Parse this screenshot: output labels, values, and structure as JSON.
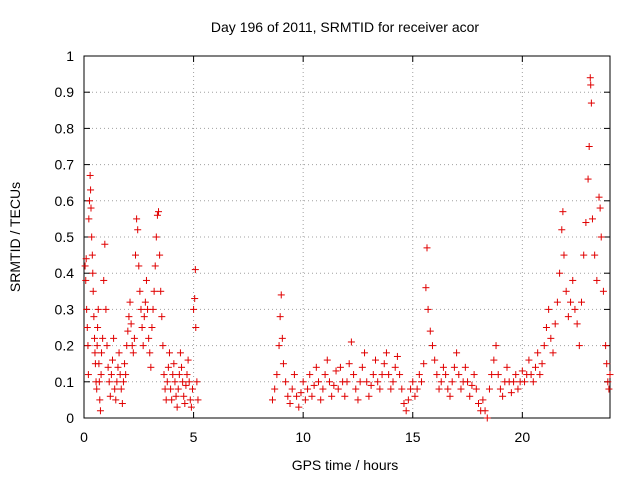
{
  "chart_data": {
    "type": "scatter",
    "title": "Day 196 of 2011, SRMTID for receiver acor",
    "xlabel": "GPS time / hours",
    "ylabel": "SRMTID / TECUs",
    "xlim": [
      0,
      24
    ],
    "ylim": [
      0,
      1
    ],
    "x_ticks": [
      0,
      5,
      10,
      15,
      20
    ],
    "x_tick_labels": [
      "0",
      "5",
      "10",
      "15",
      "20"
    ],
    "y_ticks": [
      0,
      0.1,
      0.2,
      0.3,
      0.4,
      0.5,
      0.6,
      0.7,
      0.8,
      0.9,
      1
    ],
    "y_tick_labels": [
      "0",
      "0.1",
      "0.2",
      "0.3",
      "0.4",
      "0.5",
      "0.6",
      "0.7",
      "0.8",
      "0.9",
      "1"
    ],
    "grid": true,
    "legend": "none",
    "marker": "+",
    "marker_color": "#e00000",
    "data_segments": [
      {
        "x_range": [
          0.0,
          5.2
        ],
        "note_values": "dense, 0.02-0.67, peak ~0.67 near x=0.3, ~0.57 near x=3.4"
      },
      {
        "x_range": [
          8.6,
          24.0
        ],
        "note_values": "dense, 0.0-0.94, peak ~0.94 near x=23.1"
      }
    ],
    "points": [
      [
        0.05,
        0.42
      ],
      [
        0.08,
        0.38
      ],
      [
        0.1,
        0.44
      ],
      [
        0.12,
        0.3
      ],
      [
        0.15,
        0.25
      ],
      [
        0.18,
        0.2
      ],
      [
        0.2,
        0.12
      ],
      [
        0.22,
        0.55
      ],
      [
        0.25,
        0.6
      ],
      [
        0.28,
        0.67
      ],
      [
        0.3,
        0.63
      ],
      [
        0.32,
        0.58
      ],
      [
        0.35,
        0.5
      ],
      [
        0.38,
        0.45
      ],
      [
        0.4,
        0.4
      ],
      [
        0.42,
        0.35
      ],
      [
        0.45,
        0.28
      ],
      [
        0.48,
        0.22
      ],
      [
        0.5,
        0.18
      ],
      [
        0.52,
        0.15
      ],
      [
        0.55,
        0.1
      ],
      [
        0.58,
        0.08
      ],
      [
        0.6,
        0.2
      ],
      [
        0.62,
        0.25
      ],
      [
        0.65,
        0.3
      ],
      [
        0.68,
        0.15
      ],
      [
        0.7,
        0.1
      ],
      [
        0.72,
        0.05
      ],
      [
        0.75,
        0.02
      ],
      [
        0.78,
        0.12
      ],
      [
        0.8,
        0.18
      ],
      [
        0.85,
        0.22
      ],
      [
        0.9,
        0.38
      ],
      [
        0.95,
        0.48
      ],
      [
        1.0,
        0.3
      ],
      [
        1.05,
        0.2
      ],
      [
        1.1,
        0.14
      ],
      [
        1.15,
        0.1
      ],
      [
        1.2,
        0.06
      ],
      [
        1.25,
        0.12
      ],
      [
        1.3,
        0.16
      ],
      [
        1.35,
        0.22
      ],
      [
        1.4,
        0.08
      ],
      [
        1.45,
        0.05
      ],
      [
        1.5,
        0.1
      ],
      [
        1.55,
        0.14
      ],
      [
        1.6,
        0.18
      ],
      [
        1.65,
        0.12
      ],
      [
        1.7,
        0.08
      ],
      [
        1.75,
        0.04
      ],
      [
        1.8,
        0.1
      ],
      [
        1.85,
        0.15
      ],
      [
        1.9,
        0.12
      ],
      [
        1.95,
        0.2
      ],
      [
        2.0,
        0.24
      ],
      [
        2.05,
        0.28
      ],
      [
        2.1,
        0.32
      ],
      [
        2.15,
        0.26
      ],
      [
        2.2,
        0.2
      ],
      [
        2.25,
        0.18
      ],
      [
        2.3,
        0.22
      ],
      [
        2.35,
        0.45
      ],
      [
        2.4,
        0.55
      ],
      [
        2.45,
        0.52
      ],
      [
        2.5,
        0.42
      ],
      [
        2.55,
        0.35
      ],
      [
        2.6,
        0.3
      ],
      [
        2.65,
        0.25
      ],
      [
        2.7,
        0.2
      ],
      [
        2.75,
        0.28
      ],
      [
        2.8,
        0.32
      ],
      [
        2.85,
        0.38
      ],
      [
        2.9,
        0.3
      ],
      [
        2.95,
        0.22
      ],
      [
        3.0,
        0.18
      ],
      [
        3.05,
        0.14
      ],
      [
        3.1,
        0.25
      ],
      [
        3.15,
        0.3
      ],
      [
        3.2,
        0.35
      ],
      [
        3.25,
        0.42
      ],
      [
        3.3,
        0.5
      ],
      [
        3.35,
        0.56
      ],
      [
        3.4,
        0.57
      ],
      [
        3.45,
        0.45
      ],
      [
        3.5,
        0.35
      ],
      [
        3.55,
        0.28
      ],
      [
        3.6,
        0.2
      ],
      [
        3.65,
        0.12
      ],
      [
        3.7,
        0.08
      ],
      [
        3.75,
        0.05
      ],
      [
        3.8,
        0.1
      ],
      [
        3.85,
        0.14
      ],
      [
        3.9,
        0.18
      ],
      [
        3.95,
        0.08
      ],
      [
        4.0,
        0.05
      ],
      [
        4.05,
        0.12
      ],
      [
        4.1,
        0.15
      ],
      [
        4.15,
        0.1
      ],
      [
        4.2,
        0.06
      ],
      [
        4.25,
        0.03
      ],
      [
        4.3,
        0.08
      ],
      [
        4.35,
        0.12
      ],
      [
        4.4,
        0.18
      ],
      [
        4.45,
        0.14
      ],
      [
        4.5,
        0.1
      ],
      [
        4.55,
        0.06
      ],
      [
        4.6,
        0.04
      ],
      [
        4.65,
        0.09
      ],
      [
        4.7,
        0.12
      ],
      [
        4.75,
        0.16
      ],
      [
        4.8,
        0.1
      ],
      [
        4.85,
        0.05
      ],
      [
        4.9,
        0.03
      ],
      [
        4.95,
        0.08
      ],
      [
        5.0,
        0.3
      ],
      [
        5.05,
        0.33
      ],
      [
        5.08,
        0.41
      ],
      [
        5.1,
        0.25
      ],
      [
        5.15,
        0.1
      ],
      [
        5.2,
        0.05
      ],
      [
        8.6,
        0.05
      ],
      [
        8.7,
        0.08
      ],
      [
        8.8,
        0.12
      ],
      [
        8.9,
        0.2
      ],
      [
        8.95,
        0.28
      ],
      [
        9.0,
        0.34
      ],
      [
        9.05,
        0.22
      ],
      [
        9.1,
        0.15
      ],
      [
        9.2,
        0.1
      ],
      [
        9.3,
        0.06
      ],
      [
        9.4,
        0.04
      ],
      [
        9.5,
        0.08
      ],
      [
        9.6,
        0.12
      ],
      [
        9.7,
        0.06
      ],
      [
        9.8,
        0.03
      ],
      [
        9.9,
        0.07
      ],
      [
        10.0,
        0.1
      ],
      [
        10.1,
        0.05
      ],
      [
        10.2,
        0.08
      ],
      [
        10.3,
        0.12
      ],
      [
        10.4,
        0.06
      ],
      [
        10.5,
        0.09
      ],
      [
        10.6,
        0.14
      ],
      [
        10.7,
        0.1
      ],
      [
        10.8,
        0.05
      ],
      [
        10.9,
        0.08
      ],
      [
        11.0,
        0.12
      ],
      [
        11.1,
        0.16
      ],
      [
        11.2,
        0.1
      ],
      [
        11.3,
        0.06
      ],
      [
        11.4,
        0.09
      ],
      [
        11.5,
        0.13
      ],
      [
        11.6,
        0.08
      ],
      [
        11.7,
        0.14
      ],
      [
        11.8,
        0.1
      ],
      [
        11.9,
        0.06
      ],
      [
        12.0,
        0.1
      ],
      [
        12.1,
        0.15
      ],
      [
        12.2,
        0.21
      ],
      [
        12.3,
        0.12
      ],
      [
        12.4,
        0.08
      ],
      [
        12.5,
        0.05
      ],
      [
        12.6,
        0.1
      ],
      [
        12.7,
        0.14
      ],
      [
        12.8,
        0.18
      ],
      [
        12.9,
        0.1
      ],
      [
        13.0,
        0.06
      ],
      [
        13.1,
        0.09
      ],
      [
        13.2,
        0.12
      ],
      [
        13.3,
        0.16
      ],
      [
        13.4,
        0.1
      ],
      [
        13.5,
        0.08
      ],
      [
        13.6,
        0.12
      ],
      [
        13.7,
        0.15
      ],
      [
        13.8,
        0.18
      ],
      [
        13.9,
        0.12
      ],
      [
        14.0,
        0.08
      ],
      [
        14.1,
        0.1
      ],
      [
        14.2,
        0.14
      ],
      [
        14.3,
        0.17
      ],
      [
        14.4,
        0.12
      ],
      [
        14.5,
        0.08
      ],
      [
        14.6,
        0.04
      ],
      [
        14.7,
        0.02
      ],
      [
        14.8,
        0.05
      ],
      [
        14.9,
        0.08
      ],
      [
        15.0,
        0.1
      ],
      [
        15.1,
        0.06
      ],
      [
        15.2,
        0.08
      ],
      [
        15.3,
        0.12
      ],
      [
        15.4,
        0.1
      ],
      [
        15.5,
        0.15
      ],
      [
        15.6,
        0.36
      ],
      [
        15.65,
        0.47
      ],
      [
        15.7,
        0.3
      ],
      [
        15.8,
        0.24
      ],
      [
        15.9,
        0.2
      ],
      [
        16.0,
        0.16
      ],
      [
        16.1,
        0.12
      ],
      [
        16.2,
        0.08
      ],
      [
        16.3,
        0.1
      ],
      [
        16.4,
        0.14
      ],
      [
        16.5,
        0.12
      ],
      [
        16.6,
        0.08
      ],
      [
        16.7,
        0.06
      ],
      [
        16.8,
        0.1
      ],
      [
        16.9,
        0.14
      ],
      [
        17.0,
        0.18
      ],
      [
        17.1,
        0.12
      ],
      [
        17.2,
        0.08
      ],
      [
        17.3,
        0.1
      ],
      [
        17.4,
        0.14
      ],
      [
        17.5,
        0.1
      ],
      [
        17.6,
        0.06
      ],
      [
        17.7,
        0.09
      ],
      [
        17.8,
        0.12
      ],
      [
        17.9,
        0.08
      ],
      [
        18.0,
        0.04
      ],
      [
        18.1,
        0.02
      ],
      [
        18.2,
        0.05
      ],
      [
        18.3,
        0.02
      ],
      [
        18.4,
        0.0
      ],
      [
        18.5,
        0.08
      ],
      [
        18.6,
        0.12
      ],
      [
        18.7,
        0.16
      ],
      [
        18.8,
        0.2
      ],
      [
        18.9,
        0.12
      ],
      [
        19.0,
        0.08
      ],
      [
        19.1,
        0.06
      ],
      [
        19.2,
        0.1
      ],
      [
        19.3,
        0.14
      ],
      [
        19.4,
        0.1
      ],
      [
        19.5,
        0.07
      ],
      [
        19.6,
        0.1
      ],
      [
        19.7,
        0.12
      ],
      [
        19.8,
        0.08
      ],
      [
        19.9,
        0.1
      ],
      [
        20.0,
        0.13
      ],
      [
        20.1,
        0.1
      ],
      [
        20.2,
        0.12
      ],
      [
        20.3,
        0.16
      ],
      [
        20.4,
        0.12
      ],
      [
        20.5,
        0.1
      ],
      [
        20.6,
        0.14
      ],
      [
        20.7,
        0.18
      ],
      [
        20.8,
        0.12
      ],
      [
        20.9,
        0.15
      ],
      [
        21.0,
        0.2
      ],
      [
        21.1,
        0.25
      ],
      [
        21.2,
        0.3
      ],
      [
        21.3,
        0.22
      ],
      [
        21.4,
        0.18
      ],
      [
        21.5,
        0.26
      ],
      [
        21.6,
        0.32
      ],
      [
        21.7,
        0.4
      ],
      [
        21.8,
        0.52
      ],
      [
        21.85,
        0.57
      ],
      [
        21.9,
        0.45
      ],
      [
        22.0,
        0.35
      ],
      [
        22.1,
        0.28
      ],
      [
        22.2,
        0.32
      ],
      [
        22.3,
        0.38
      ],
      [
        22.4,
        0.3
      ],
      [
        22.5,
        0.26
      ],
      [
        22.6,
        0.2
      ],
      [
        22.7,
        0.32
      ],
      [
        22.8,
        0.45
      ],
      [
        22.9,
        0.54
      ],
      [
        23.0,
        0.66
      ],
      [
        23.05,
        0.75
      ],
      [
        23.1,
        0.94
      ],
      [
        23.12,
        0.92
      ],
      [
        23.15,
        0.87
      ],
      [
        23.2,
        0.55
      ],
      [
        23.3,
        0.45
      ],
      [
        23.4,
        0.38
      ],
      [
        23.5,
        0.61
      ],
      [
        23.55,
        0.58
      ],
      [
        23.6,
        0.5
      ],
      [
        23.7,
        0.35
      ],
      [
        23.8,
        0.2
      ],
      [
        23.85,
        0.15
      ],
      [
        23.9,
        0.1
      ],
      [
        23.95,
        0.08
      ],
      [
        24.0,
        0.12
      ]
    ]
  }
}
